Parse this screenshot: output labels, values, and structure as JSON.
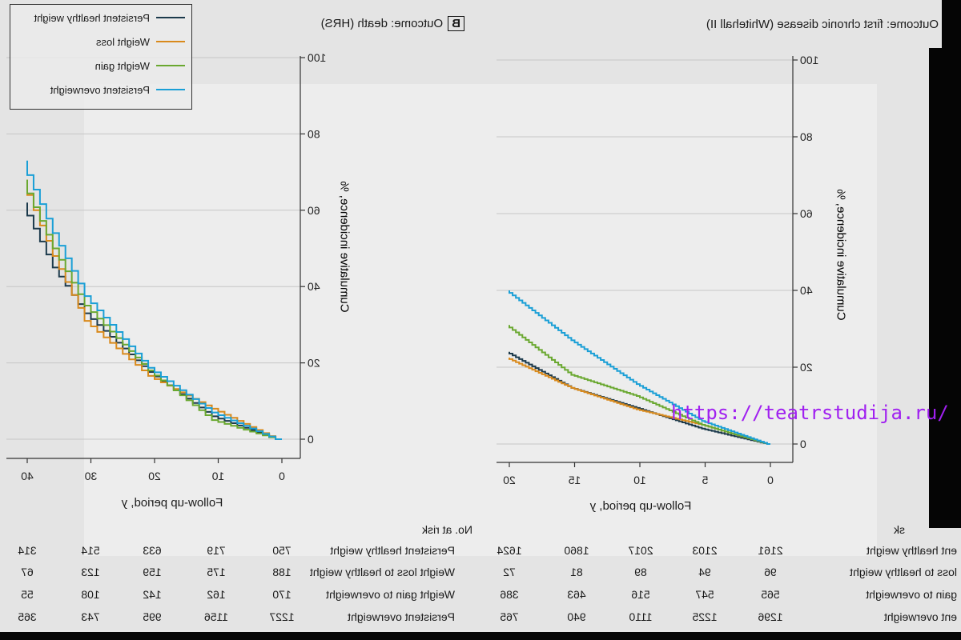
{
  "colors": {
    "healthy": "#1c3a4c",
    "loss": "#d98a1c",
    "gain": "#6aa830",
    "over": "#1a9fd6",
    "grid": "#c6c6c6",
    "watermark": "#a020f0"
  },
  "panel_a": {
    "title": "ome: first chronic disease (Whitehall II)",
    "risk_header": "sk",
    "risk_labels": [
      "ent healthy weight",
      "loss to healthy weight",
      "gain to overweight",
      "ent overweight"
    ],
    "risk": [
      [
        "2161",
        "2103",
        "2017",
        "1860",
        "1624"
      ],
      [
        "96",
        "94",
        "89",
        "81",
        "72"
      ],
      [
        "565",
        "547",
        "516",
        "463",
        "386"
      ],
      [
        "1296",
        "1225",
        "1110",
        "940",
        "765"
      ]
    ]
  },
  "panel_b": {
    "letter": "B",
    "title": "Outcome: death (HRS)",
    "risk_header": "No. at risk",
    "risk_labels": [
      "Persistent healthy weight",
      "Weight loss to healthy weight",
      "Weight gain to overweight",
      "Persistent overweight"
    ],
    "risk": [
      [
        "750",
        "719",
        "633",
        "514",
        "314"
      ],
      [
        "188",
        "175",
        "159",
        "123",
        "67"
      ],
      [
        "170",
        "162",
        "142",
        "108",
        "55"
      ],
      [
        "1227",
        "1156",
        "995",
        "743",
        "365"
      ]
    ]
  },
  "legend": [
    "Persistent healthy weight",
    "Weight loss",
    "Weight gain",
    "Persistent overweight"
  ],
  "watermark": "https://teatrstudija.ru/",
  "chart_data": [
    {
      "type": "line",
      "title": "Outcome: first chronic disease (Whitehall II)",
      "xlabel": "Follow-up period, y",
      "ylabel": "Cumulative incidence, %",
      "xlim": [
        0,
        20
      ],
      "ylim": [
        0,
        100
      ],
      "xticks": [
        "0",
        "5",
        "10",
        "15",
        "20"
      ],
      "yticks": [
        "0",
        "20",
        "40",
        "60",
        "80",
        "100"
      ],
      "grid": true,
      "x": [
        0,
        5,
        10,
        15,
        20
      ],
      "series": [
        {
          "name": "Persistent healthy weight",
          "values": [
            0,
            4,
            9.4,
            14.6,
            24
          ]
        },
        {
          "name": "Weight loss",
          "values": [
            0,
            5,
            9,
            14.6,
            22.5
          ]
        },
        {
          "name": "Weight gain",
          "values": [
            0,
            5,
            12.5,
            18,
            31
          ]
        },
        {
          "name": "Persistent overweight",
          "values": [
            0,
            6,
            15.6,
            27,
            40
          ]
        }
      ]
    },
    {
      "type": "line",
      "title": "Outcome: death (HRS)",
      "xlabel": "Follow-up period, y",
      "ylabel": "Cumulative incidence, %",
      "xlim": [
        0,
        40
      ],
      "ylim": [
        0,
        100
      ],
      "xticks": [
        "0",
        "10",
        "20",
        "30",
        "40"
      ],
      "yticks": [
        "0",
        "20",
        "40",
        "60",
        "80",
        "100"
      ],
      "grid": true,
      "legend": "top-right",
      "x": [
        0,
        10,
        20,
        30,
        35,
        40
      ],
      "series": [
        {
          "name": "Persistent healthy weight",
          "values": [
            0,
            6,
            17.6,
            33,
            45,
            62
          ]
        },
        {
          "name": "Weight loss",
          "values": [
            0,
            8,
            16.6,
            31,
            48,
            68
          ]
        },
        {
          "name": "Weight gain",
          "values": [
            0,
            5,
            18,
            35,
            50,
            68
          ]
        },
        {
          "name": "Persistent overweight",
          "values": [
            0,
            7,
            18.7,
            37.5,
            54,
            73
          ]
        }
      ]
    }
  ]
}
